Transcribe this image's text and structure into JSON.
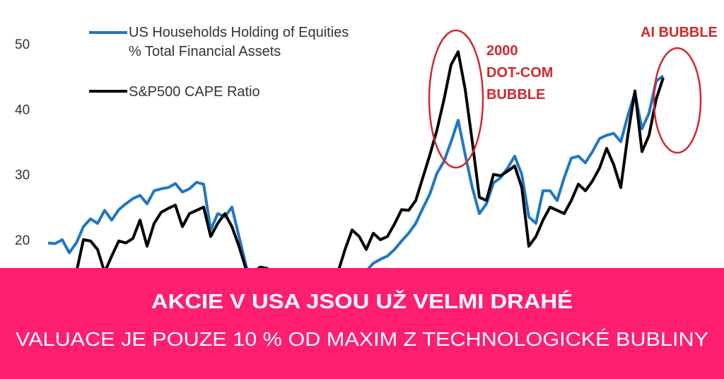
{
  "chart_data": {
    "type": "line",
    "title": "",
    "xlabel": "",
    "ylabel": "",
    "ylim": [
      10,
      53
    ],
    "yticks": [
      "50",
      "40",
      "30",
      "20"
    ],
    "ytick_values": [
      50,
      40,
      30,
      20
    ],
    "grid": false,
    "legend_placement": "top-left",
    "series": [
      {
        "name": "US Households Holding of Equities\n% Total Financial Assets",
        "name_lines": [
          "US Households Holding of Equities",
          "% Total Financial Assets"
        ],
        "color": "#1f77c4",
        "values": [
          19.5,
          19.4,
          20,
          18,
          19.5,
          22,
          23.2,
          22.5,
          24.5,
          23,
          24.6,
          25.5,
          26.3,
          26.8,
          25.5,
          27.5,
          27.8,
          28,
          28.6,
          27.3,
          27.8,
          28.8,
          28.5,
          21.5,
          24,
          23.5,
          25,
          20.5,
          16,
          13.5,
          12.5,
          12,
          11.5,
          11,
          10.5,
          10.5,
          10.5,
          11,
          11.5,
          12,
          12.5,
          13,
          13.5,
          14,
          14.5,
          15.2,
          16.4,
          17,
          17.5,
          18.5,
          19.8,
          21,
          22.5,
          24.8,
          27,
          30.2,
          32,
          35,
          38.3,
          33,
          28,
          24,
          25.5,
          28.7,
          29.5,
          31,
          32.8,
          30,
          23.5,
          22.5,
          27.5,
          27.5,
          26,
          29.5,
          32.5,
          32.8,
          31.8,
          33.5,
          35.5,
          36,
          36.3,
          35,
          39,
          42.5,
          37,
          39.4,
          44.3,
          45.1
        ]
      },
      {
        "name": "S&P500 CAPE Ratio",
        "color": "#000000",
        "values": [
          null,
          null,
          null,
          null,
          15,
          20,
          19.8,
          18.5,
          15,
          17.5,
          19.8,
          19.5,
          20.2,
          23,
          19,
          22.5,
          24.2,
          24.8,
          25.3,
          22,
          24,
          24.5,
          25,
          20.5,
          22.5,
          24,
          22,
          19,
          15.5,
          15,
          15.8,
          15.6,
          14.5,
          13,
          11,
          9.5,
          9,
          9.5,
          10.5,
          12,
          13.5,
          15,
          18.5,
          21.5,
          20.5,
          18.5,
          21,
          20,
          20.5,
          22.4,
          24.6,
          24.5,
          26,
          29.5,
          33,
          36.8,
          41.5,
          46.8,
          48.8,
          43,
          35,
          26.5,
          26,
          30,
          29.8,
          30.5,
          31.3,
          28,
          19,
          20.5,
          23,
          25,
          24.5,
          24,
          26,
          28.5,
          27.5,
          29,
          31,
          34,
          31.5,
          28,
          36,
          42.8,
          33.5,
          36,
          41.5,
          44.8
        ]
      }
    ],
    "annotations": [
      {
        "lines": [
          "2000",
          "DOT-COM",
          "BUBBLE"
        ],
        "color": "#d0282e",
        "highlight_index_range": [
          54,
          62
        ]
      },
      {
        "lines": [
          "AI BUBBLE"
        ],
        "color": "#d0282e",
        "highlight_index_range": [
          84,
          87
        ]
      }
    ]
  },
  "banner": {
    "color": "#ff1e6f",
    "headline": "AKCIE V USA JSOU UŽ VELMI DRAHÉ",
    "subline": "VALUACE JE POUZE 10 % OD MAXIM Z TECHNOLOGICKÉ BUBLINY"
  }
}
